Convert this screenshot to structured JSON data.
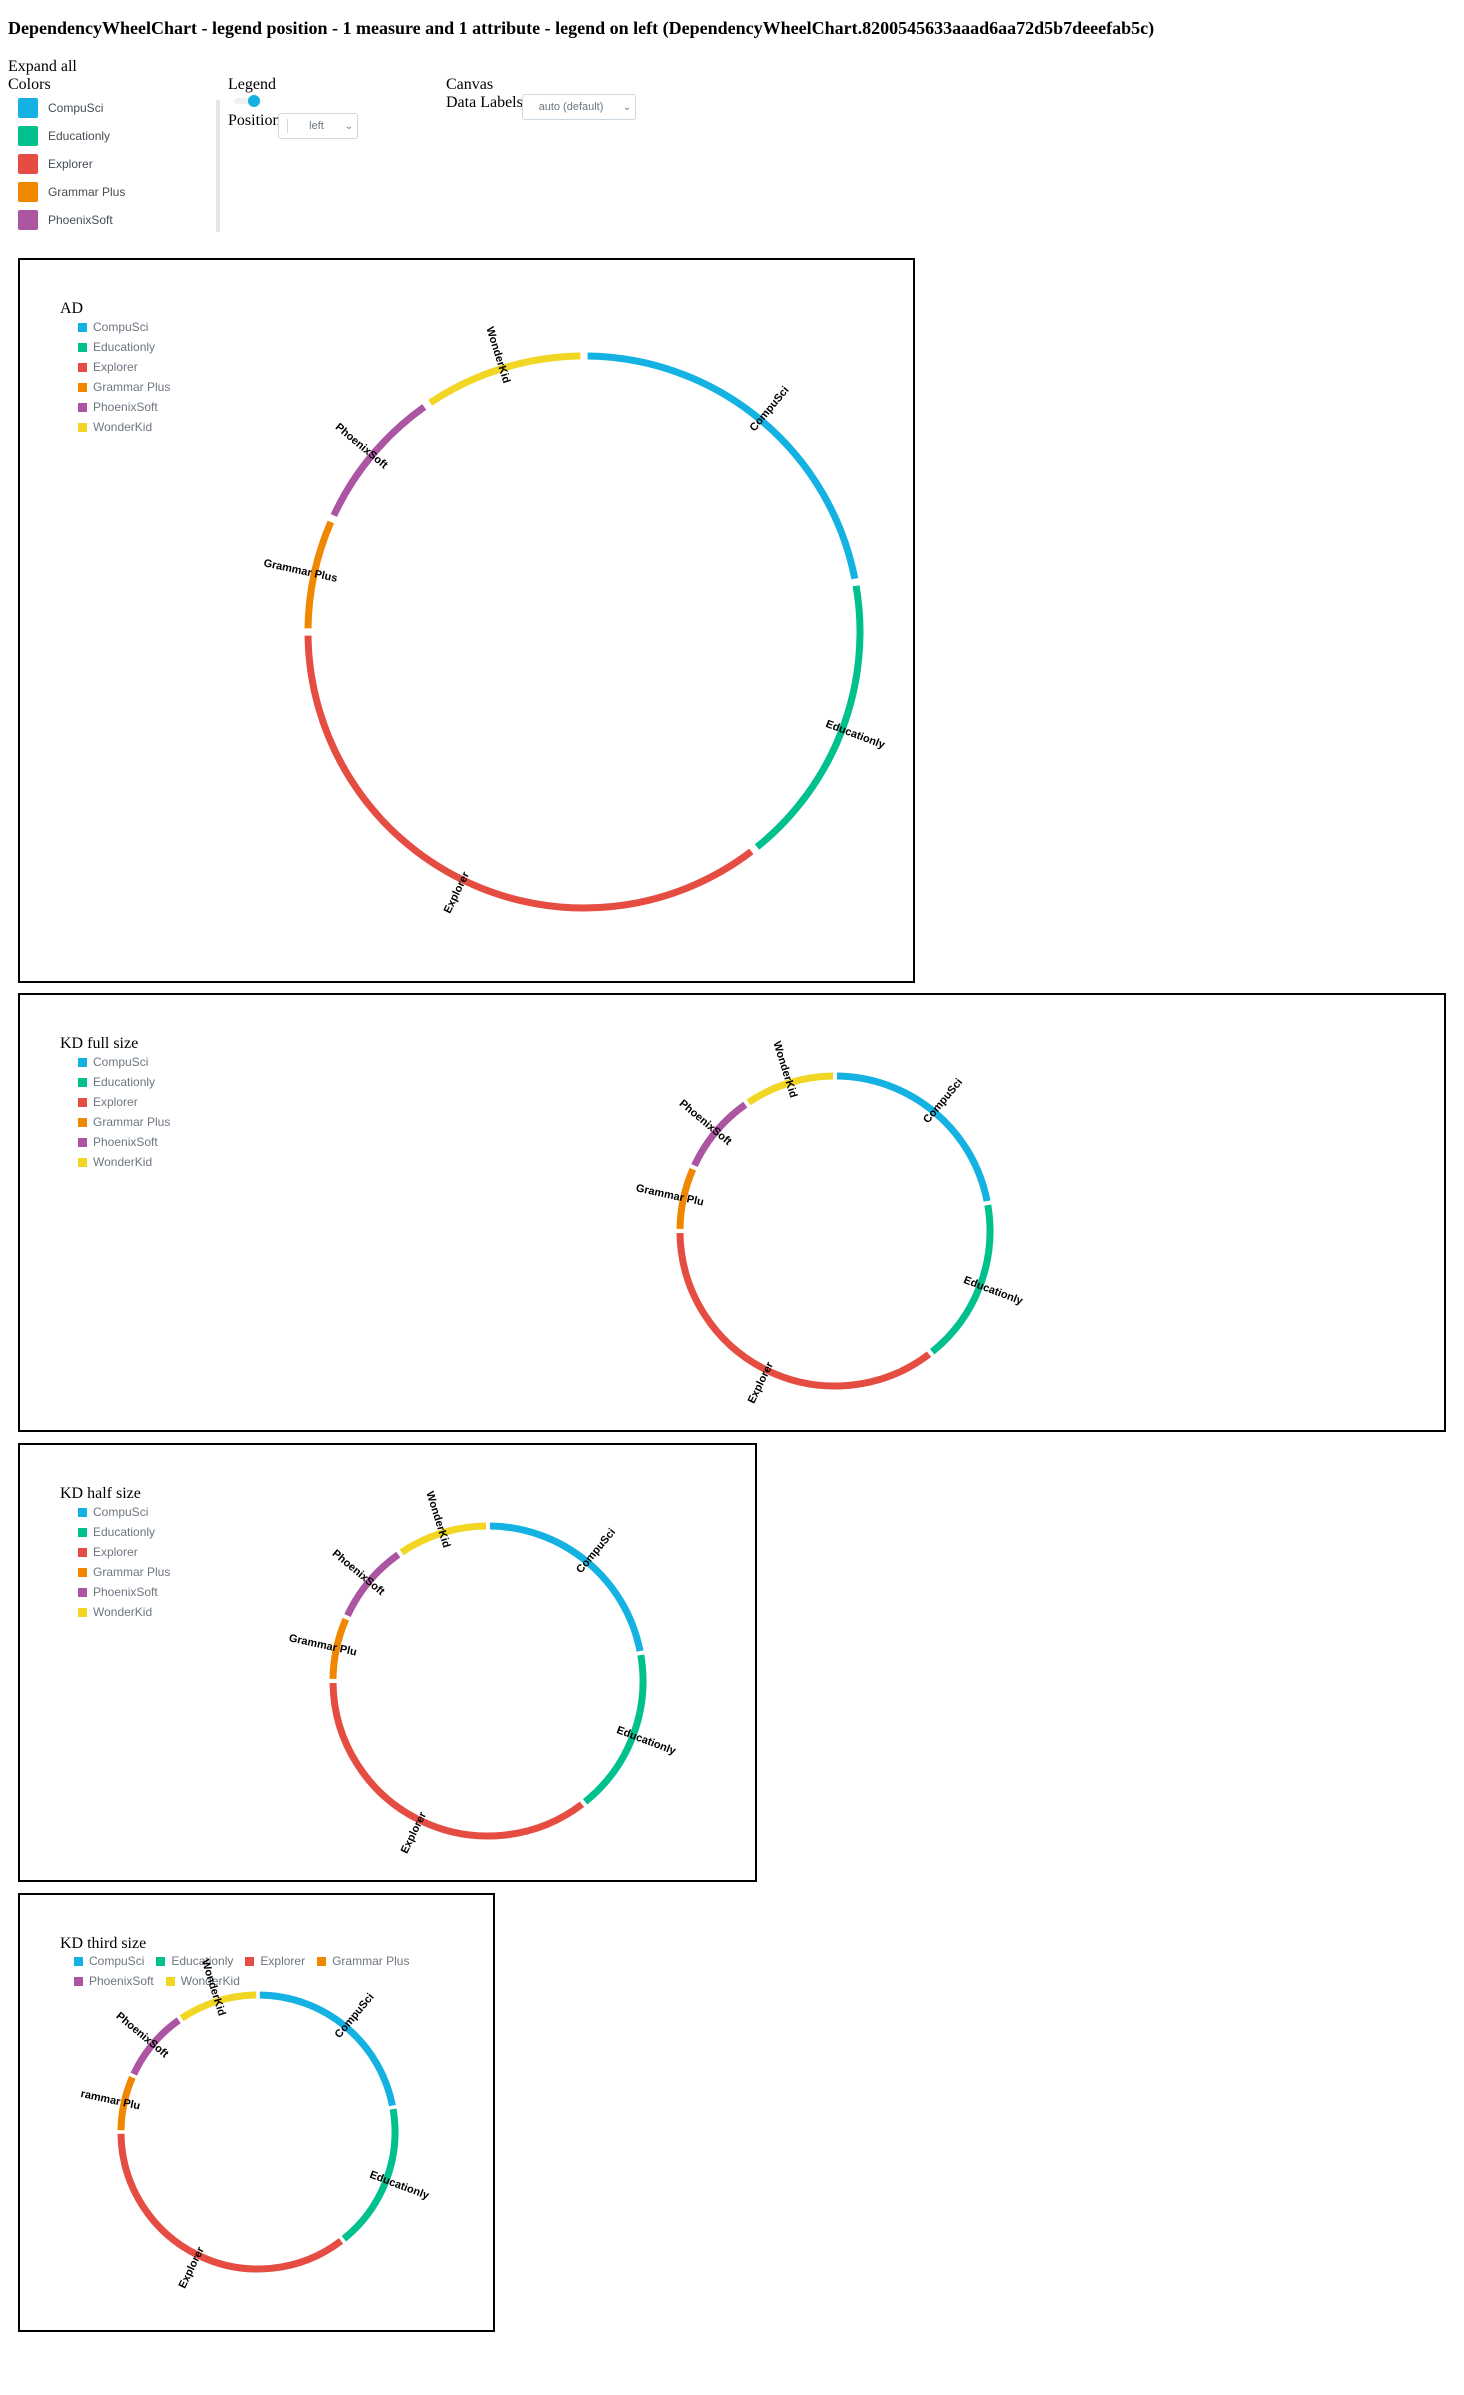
{
  "page_title": "DependencyWheelChart - legend position - 1 measure and 1 attribute - legend on left (DependencyWheelChart.8200545633aaad6aa72d5b7deeefab5c)",
  "controls": {
    "expand_all": "Expand all",
    "colors_title": "Colors",
    "colors": [
      {
        "label": "CompuSci",
        "color": "#14b2e2"
      },
      {
        "label": "Educationly",
        "color": "#00c18d"
      },
      {
        "label": "Explorer",
        "color": "#e54d42"
      },
      {
        "label": "Grammar Plus",
        "color": "#f18600"
      },
      {
        "label": "PhoenixSoft",
        "color": "#ab55a3"
      },
      {
        "label": "WonderKid",
        "color": "#f1d624"
      }
    ],
    "legend_title": "Legend",
    "legend_enabled": true,
    "position_label": "Position",
    "position_value": "left",
    "canvas_title": "Canvas",
    "data_labels_label": "Data Labels",
    "data_labels_value": "auto (default)"
  },
  "chart_data": [
    {
      "type": "dependency-wheel",
      "title": "AD",
      "legend": "left",
      "nodes": [
        "CompuSci",
        "Educationly",
        "Explorer",
        "Grammar Plus",
        "PhoenixSoft",
        "WonderKid"
      ],
      "values": [
        23,
        18,
        37,
        7,
        9,
        10
      ],
      "labels": [
        "CompuSci",
        "Educationly",
        "Explorer",
        "Grammar Plus",
        "PhoenixSoft",
        "WonderKid"
      ]
    },
    {
      "type": "dependency-wheel",
      "title": "KD full size",
      "legend": "left",
      "nodes": [
        "CompuSci",
        "Educationly",
        "Explorer",
        "Grammar Plus",
        "PhoenixSoft",
        "WonderKid"
      ],
      "values": [
        23,
        18,
        37,
        7,
        9,
        10
      ],
      "labels": [
        "CompuSci",
        "Educationly",
        "Explorer",
        "Grammar Plu",
        "PhoenixSoft",
        "WonderKid"
      ]
    },
    {
      "type": "dependency-wheel",
      "title": "KD half size",
      "legend": "left",
      "nodes": [
        "CompuSci",
        "Educationly",
        "Explorer",
        "Grammar Plus",
        "PhoenixSoft",
        "WonderKid"
      ],
      "values": [
        23,
        18,
        37,
        7,
        9,
        10
      ],
      "labels": [
        "CompuSci",
        "Educationly",
        "Explorer",
        "Grammar Plu",
        "PhoenixSoft",
        "WonderKid"
      ]
    },
    {
      "type": "dependency-wheel",
      "title": "KD third size",
      "legend": "top",
      "nodes": [
        "CompuSci",
        "Educationly",
        "Explorer",
        "Grammar Plus",
        "PhoenixSoft",
        "WonderKid"
      ],
      "values": [
        23,
        18,
        37,
        7,
        9,
        10
      ],
      "labels": [
        "CompuSci",
        "Educationly",
        "Explorer",
        "rammar Plu",
        "PhoenixSoft",
        "WonderKid"
      ]
    }
  ]
}
